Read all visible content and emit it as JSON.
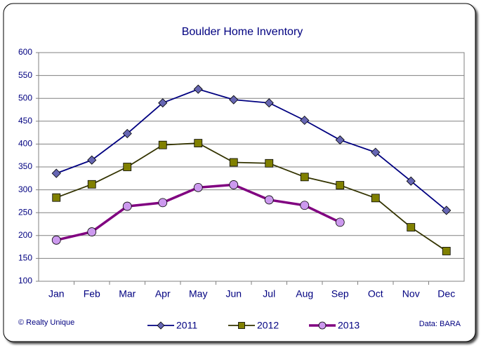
{
  "chart_data": {
    "type": "line",
    "title": "Boulder Home Inventory",
    "categories": [
      "Jan",
      "Feb",
      "Mar",
      "Apr",
      "May",
      "Jun",
      "Jul",
      "Aug",
      "Sep",
      "Oct",
      "Nov",
      "Dec"
    ],
    "series": [
      {
        "name": "2011",
        "color": "#000080",
        "marker_color": "#6666b3",
        "marker": "diamond",
        "values": [
          336,
          365,
          423,
          490,
          520,
          497,
          490,
          452,
          409,
          382,
          319,
          255
        ]
      },
      {
        "name": "2012",
        "color": "#333300",
        "marker_color": "#808000",
        "marker": "square",
        "values": [
          283,
          312,
          350,
          398,
          402,
          360,
          358,
          328,
          310,
          282,
          218,
          166
        ]
      },
      {
        "name": "2013",
        "color": "#800080",
        "marker_color": "#cc99ee",
        "marker": "circle",
        "values": [
          190,
          208,
          264,
          272,
          305,
          311,
          278,
          266,
          229,
          null,
          null,
          null
        ]
      }
    ],
    "ylim": [
      100,
      600
    ],
    "yticks": [
      100,
      150,
      200,
      250,
      300,
      350,
      400,
      450,
      500,
      550,
      600
    ],
    "grid": true,
    "annotations": [
      "© Realty Unique",
      "Data: BARA"
    ]
  }
}
